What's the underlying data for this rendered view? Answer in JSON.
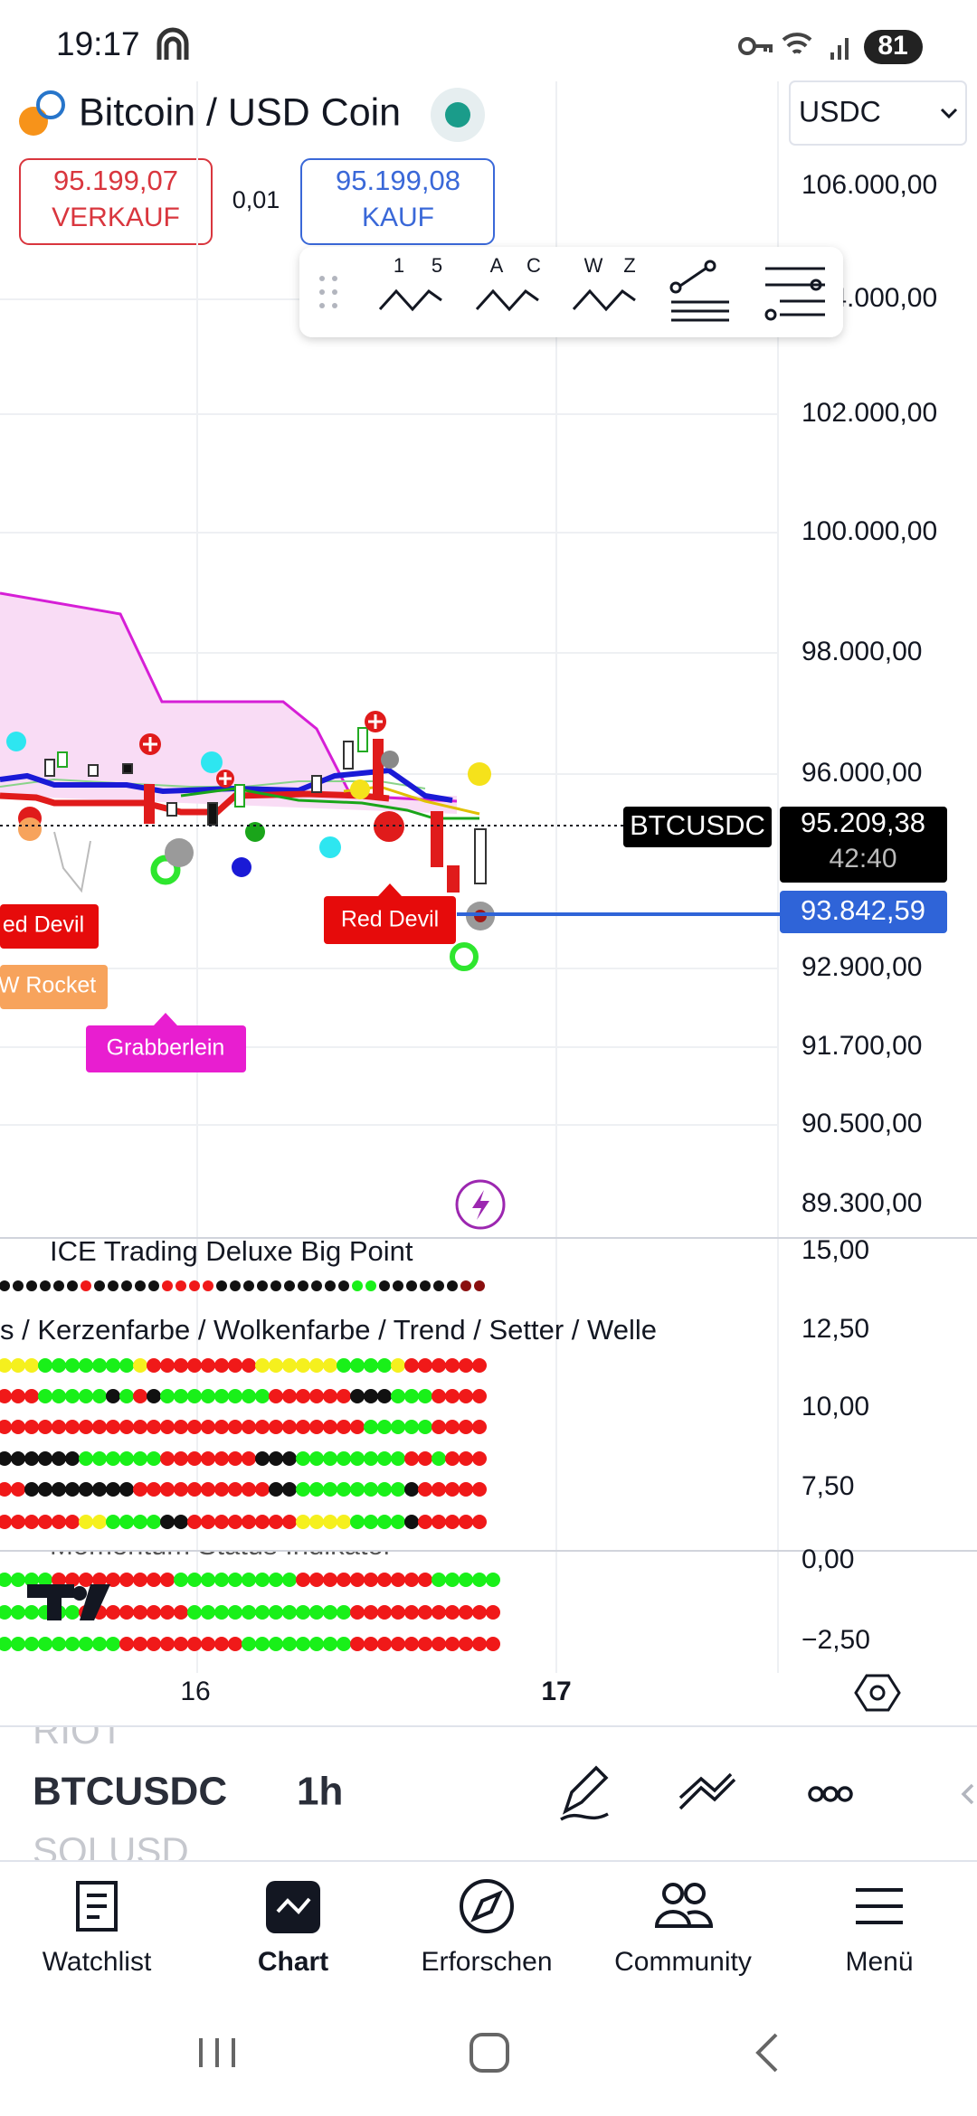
{
  "status_bar": {
    "time": "19:17",
    "battery": "81"
  },
  "header": {
    "title": "Bitcoin / USD Coin",
    "currency": "USDC"
  },
  "quote": {
    "sell_price": "95.199,07",
    "sell_label": "VERKAUF",
    "spread": "0,01",
    "buy_price": "95.199,08",
    "buy_label": "KAUF"
  },
  "toolbar": {
    "tools": [
      {
        "left": "1",
        "right": "5"
      },
      {
        "left": "A",
        "right": "C"
      },
      {
        "left": "W",
        "right": "Z"
      }
    ]
  },
  "price_axis": {
    "labels": [
      "106.000,00",
      "104.000,00",
      "102.000,00",
      "100.000,00",
      "98.000,00",
      "96.000,00",
      "92.900,00",
      "91.700,00",
      "90.500,00",
      "89.300,00"
    ]
  },
  "price_marker": {
    "symbol": "BTCUSDC",
    "price": "95.209,38",
    "countdown": "42:40"
  },
  "alert_line": {
    "price": "93.842,59"
  },
  "chart_labels": [
    "ed Devil",
    "W Rocket",
    "Grabberlein",
    "Red Devil"
  ],
  "indicators": {
    "title_1": "ICE Trading Deluxe Big Point",
    "title_2": "s / Kerzenfarbe / Wolkenfarbe / Trend / Setter / Welle",
    "title_3": "Momentum Status Indikator",
    "axis": [
      "15,00",
      "12,50",
      "10,00",
      "7,50",
      "0,00",
      "−2,50"
    ]
  },
  "time_axis": [
    "16",
    "17"
  ],
  "symbol_bar": {
    "previous": "RIOT",
    "symbol": "BTCUSDC",
    "interval": "1h",
    "next": "SOLUSD"
  },
  "nav": [
    "Watchlist",
    "Chart",
    "Erforschen",
    "Community",
    "Menü"
  ]
}
